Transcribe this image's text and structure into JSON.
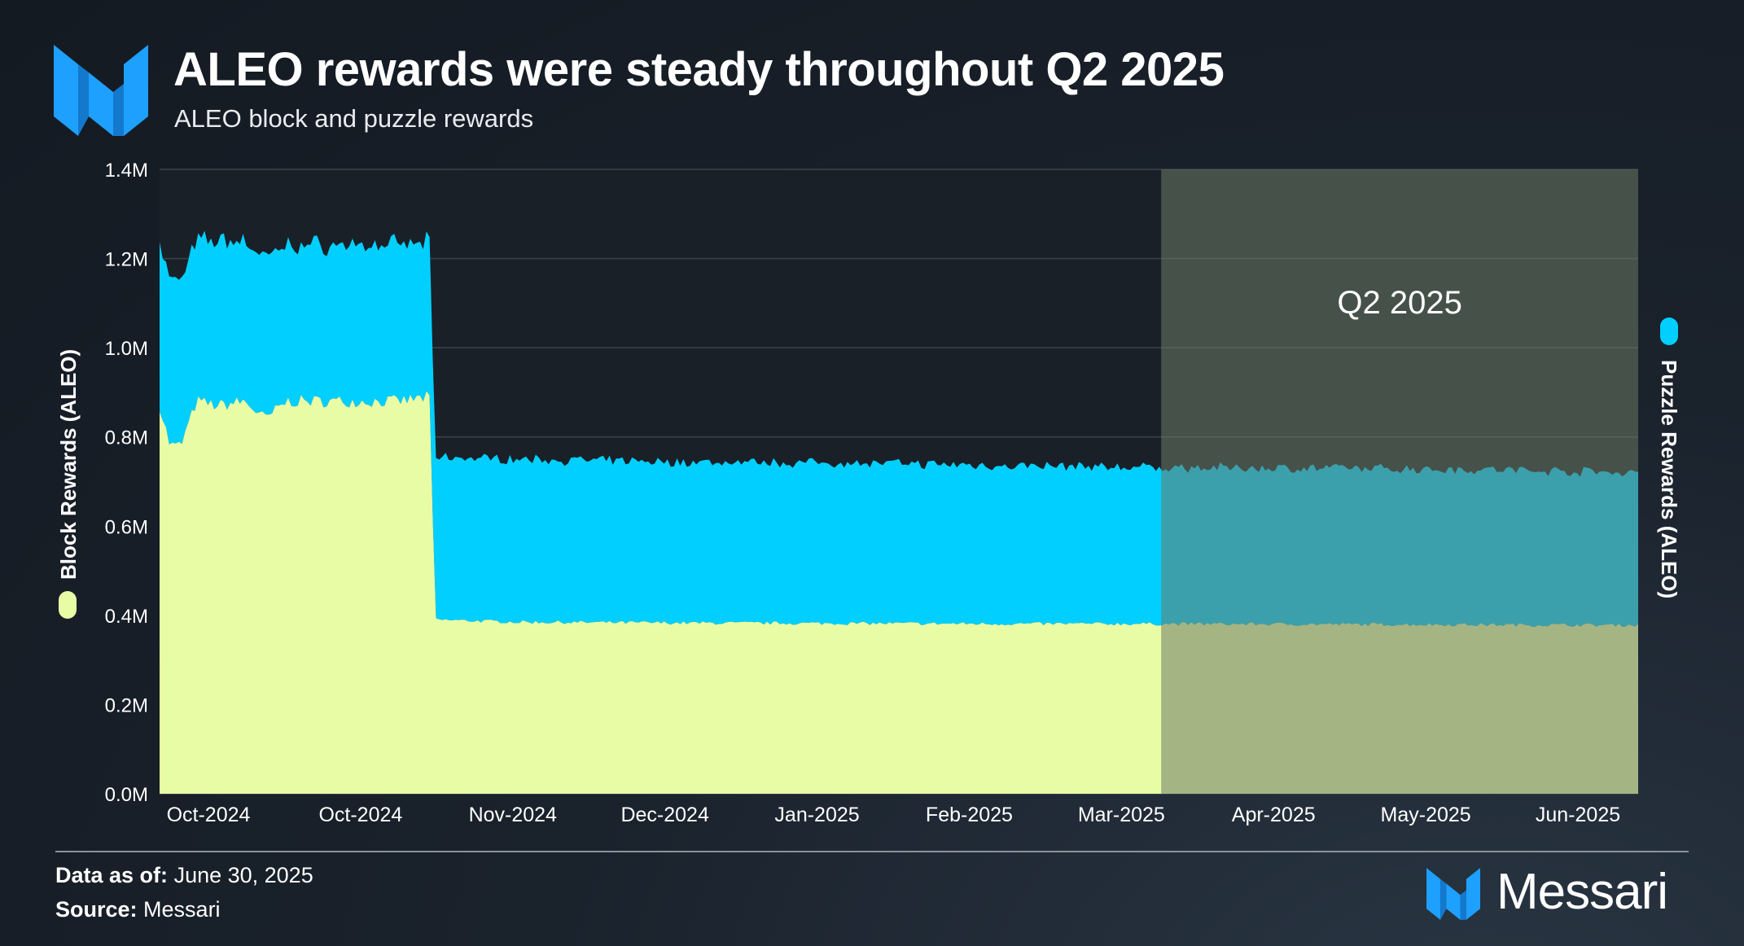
{
  "header": {
    "title": "ALEO rewards were steady throughout Q2 2025",
    "subtitle": "ALEO block and puzzle rewards"
  },
  "footer": {
    "data_as_of_label": "Data as of:",
    "data_as_of_value": "June 30, 2025",
    "source_label": "Source:",
    "source_value": "Messari",
    "brand": "Messari"
  },
  "colors": {
    "puzzle": "#00cfff",
    "block": "#e8fca6",
    "q2_highlight": "#6b7a66",
    "brand_blue": "#1ea0ff",
    "grid": "#3a434d"
  },
  "chart_data": {
    "type": "area",
    "stacked": true,
    "ylabel_left": "Block Rewards (ALEO)",
    "ylabel_right": "Puzzle Rewards (ALEO)",
    "ylim": [
      0,
      1400000
    ],
    "y_ticks": [
      "0.0M",
      "0.2M",
      "0.4M",
      "0.6M",
      "0.8M",
      "1.0M",
      "1.2M",
      "1.4M"
    ],
    "x_ticks": [
      "Oct-2024",
      "Oct-2024",
      "Nov-2024",
      "Dec-2024",
      "Jan-2025",
      "Feb-2025",
      "Mar-2025",
      "Apr-2025",
      "May-2025",
      "Jun-2025"
    ],
    "x_range": [
      "2024-09-24",
      "2025-06-30"
    ],
    "grid": true,
    "annotation": {
      "label": "Q2 2025",
      "start": "2025-04-01",
      "end": "2025-06-30"
    },
    "series": [
      {
        "name": "Block Rewards (ALEO)",
        "color": "#e8fca6",
        "points": [
          [
            "2024-09-24",
            870000
          ],
          [
            "2024-09-26",
            780000
          ],
          [
            "2024-09-28",
            780000
          ],
          [
            "2024-10-01",
            880000
          ],
          [
            "2024-10-05",
            870000
          ],
          [
            "2024-10-10",
            880000
          ],
          [
            "2024-10-14",
            840000
          ],
          [
            "2024-10-18",
            880000
          ],
          [
            "2024-10-25",
            880000
          ],
          [
            "2024-11-01",
            880000
          ],
          [
            "2024-11-08",
            880000
          ],
          [
            "2024-11-14",
            890000
          ],
          [
            "2024-11-15",
            390000
          ],
          [
            "2024-12-01",
            385000
          ],
          [
            "2025-01-01",
            383000
          ],
          [
            "2025-02-01",
            382000
          ],
          [
            "2025-03-01",
            381000
          ],
          [
            "2025-04-01",
            381000
          ],
          [
            "2025-05-01",
            380000
          ],
          [
            "2025-06-01",
            379000
          ],
          [
            "2025-06-30",
            378000
          ]
        ]
      },
      {
        "name": "Puzzle Rewards (ALEO)",
        "color": "#00cfff",
        "points": [
          [
            "2024-09-24",
            370000
          ],
          [
            "2024-09-26",
            370000
          ],
          [
            "2024-09-28",
            370000
          ],
          [
            "2024-10-01",
            360000
          ],
          [
            "2024-10-05",
            370000
          ],
          [
            "2024-10-10",
            360000
          ],
          [
            "2024-10-14",
            360000
          ],
          [
            "2024-10-18",
            350000
          ],
          [
            "2024-10-25",
            350000
          ],
          [
            "2024-11-01",
            350000
          ],
          [
            "2024-11-08",
            350000
          ],
          [
            "2024-11-14",
            345000
          ],
          [
            "2024-11-15",
            365000
          ],
          [
            "2024-12-01",
            365000
          ],
          [
            "2025-01-01",
            360000
          ],
          [
            "2025-02-01",
            360000
          ],
          [
            "2025-03-01",
            355000
          ],
          [
            "2025-04-01",
            350000
          ],
          [
            "2025-05-01",
            350000
          ],
          [
            "2025-06-01",
            348000
          ],
          [
            "2025-06-30",
            342000
          ]
        ]
      }
    ]
  }
}
